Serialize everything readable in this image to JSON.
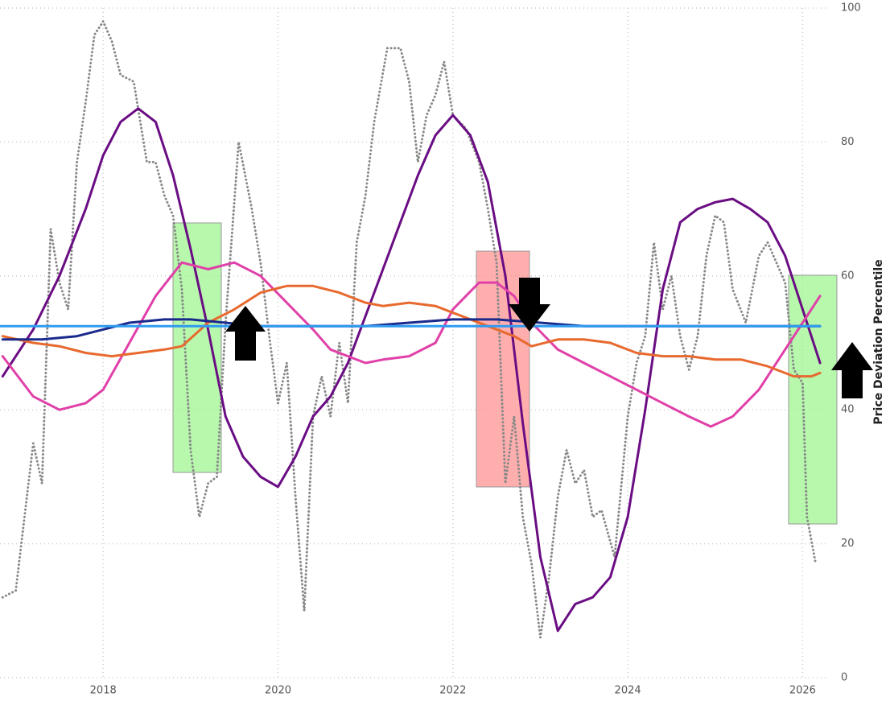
{
  "chart_data": {
    "type": "line",
    "y_label": "Price Deviation Percentile",
    "xlim": [
      2016.82,
      2026.3
    ],
    "xticks": [
      2018,
      2020,
      2022,
      2024,
      2026
    ],
    "ylim": [
      0,
      100
    ],
    "yticks": [
      0,
      20,
      40,
      60,
      80,
      100
    ],
    "grid": true,
    "series": [
      {
        "color": "#888888",
        "style": "dotted",
        "x": [
          2016.85,
          2017.0,
          2017.2,
          2017.3,
          2017.4,
          2017.5,
          2017.6,
          2017.7,
          2017.8,
          2017.9,
          2018.0,
          2018.1,
          2018.2,
          2018.35,
          2018.5,
          2018.6,
          2018.7,
          2018.8,
          2018.9,
          2019.0,
          2019.1,
          2019.2,
          2019.3,
          2019.4,
          2019.55,
          2019.7,
          2019.8,
          2019.9,
          2020.0,
          2020.1,
          2020.2,
          2020.3,
          2020.4,
          2020.5,
          2020.6,
          2020.7,
          2020.8,
          2020.9,
          2021.0,
          2021.1,
          2021.25,
          2021.4,
          2021.5,
          2021.6,
          2021.7,
          2021.8,
          2021.9,
          2022.0,
          2022.15,
          2022.3,
          2022.4,
          2022.5,
          2022.6,
          2022.7,
          2022.8,
          2022.9,
          2023.0,
          2023.1,
          2023.2,
          2023.3,
          2023.4,
          2023.5,
          2023.6,
          2023.7,
          2023.85,
          2024.0,
          2024.1,
          2024.2,
          2024.3,
          2024.4,
          2024.5,
          2024.6,
          2024.7,
          2024.8,
          2024.9,
          2025.0,
          2025.1,
          2025.2,
          2025.35,
          2025.5,
          2025.6,
          2025.7,
          2025.8,
          2025.9,
          2026.0,
          2026.05,
          2026.15
        ],
        "values": [
          12,
          13,
          35,
          29,
          67,
          59,
          55,
          77,
          86,
          96,
          98,
          95,
          90,
          89,
          77,
          77,
          72,
          69,
          58,
          34,
          24,
          29,
          30,
          53,
          80,
          70,
          62,
          51,
          41,
          47,
          27,
          10,
          39,
          45,
          39,
          50,
          41,
          65,
          72,
          83,
          94,
          94,
          89,
          77,
          84,
          87,
          92,
          84,
          82,
          77,
          70,
          62,
          29,
          39,
          24,
          17,
          6,
          15,
          27,
          34,
          29,
          31,
          24,
          25,
          18,
          39,
          47,
          51,
          65,
          55,
          60,
          51,
          46,
          51,
          63,
          69,
          68,
          58,
          53,
          63,
          65,
          62,
          59,
          46,
          44,
          24,
          17
        ]
      },
      {
        "color": "#6a0d83",
        "style": "solid",
        "x": [
          2016.85,
          2017.2,
          2017.5,
          2017.8,
          2018.0,
          2018.2,
          2018.4,
          2018.6,
          2018.8,
          2019.0,
          2019.2,
          2019.4,
          2019.6,
          2019.8,
          2020.0,
          2020.2,
          2020.4,
          2020.6,
          2020.8,
          2021.0,
          2021.2,
          2021.4,
          2021.6,
          2021.8,
          2022.0,
          2022.2,
          2022.4,
          2022.6,
          2022.8,
          2023.0,
          2023.2,
          2023.4,
          2023.6,
          2023.8,
          2024.0,
          2024.2,
          2024.4,
          2024.6,
          2024.8,
          2025.0,
          2025.2,
          2025.4,
          2025.6,
          2025.8,
          2026.0,
          2026.2
        ],
        "values": [
          45,
          52,
          60,
          70,
          78,
          83,
          85,
          83,
          75,
          64,
          52,
          39,
          33,
          30,
          28.5,
          33,
          39,
          42,
          47,
          54,
          61,
          68,
          75,
          81,
          84,
          81,
          74,
          60,
          38,
          18,
          7,
          11,
          12,
          15,
          24,
          40,
          58,
          68,
          70,
          71,
          71.5,
          70,
          68,
          63,
          55,
          47
        ]
      },
      {
        "color": "#e040a8",
        "style": "solid",
        "x": [
          2016.85,
          2017.2,
          2017.5,
          2017.8,
          2018.0,
          2018.3,
          2018.6,
          2018.9,
          2019.2,
          2019.5,
          2019.8,
          2020.1,
          2020.4,
          2020.6,
          2020.8,
          2021.0,
          2021.2,
          2021.5,
          2021.8,
          2022.0,
          2022.3,
          2022.5,
          2022.7,
          2022.9,
          2023.2,
          2023.5,
          2023.8,
          2024.1,
          2024.4,
          2024.7,
          2024.95,
          2025.2,
          2025.5,
          2025.8,
          2026.0,
          2026.2
        ],
        "values": [
          48,
          42,
          40,
          41,
          43,
          50,
          57,
          62,
          61,
          62,
          60,
          56,
          52,
          49,
          48,
          47,
          47.5,
          48,
          50,
          55,
          59,
          59,
          57,
          53,
          49,
          47,
          45,
          43,
          41,
          39,
          37.5,
          39,
          43,
          49,
          53,
          57
        ]
      },
      {
        "color": "#e8692e",
        "style": "solid",
        "x": [
          2016.85,
          2017.2,
          2017.5,
          2017.8,
          2018.1,
          2018.4,
          2018.7,
          2018.9,
          2019.2,
          2019.5,
          2019.8,
          2020.1,
          2020.4,
          2020.7,
          2021.0,
          2021.2,
          2021.5,
          2021.8,
          2022.1,
          2022.4,
          2022.7,
          2022.9,
          2023.2,
          2023.5,
          2023.8,
          2024.1,
          2024.4,
          2024.7,
          2025.0,
          2025.3,
          2025.6,
          2025.9,
          2026.1,
          2026.2
        ],
        "values": [
          51,
          50,
          49.5,
          48.5,
          48,
          48.5,
          49,
          49.5,
          53,
          55,
          57.5,
          58.5,
          58.5,
          57.5,
          56,
          55.5,
          56,
          55.5,
          54,
          52.5,
          51,
          49.5,
          50.5,
          50.5,
          50,
          48.5,
          48,
          48,
          47.5,
          47.5,
          46.5,
          45,
          45,
          45.5
        ]
      },
      {
        "color": "#1a2a8c",
        "style": "solid",
        "x": [
          2016.85,
          2017.3,
          2017.7,
          2018.0,
          2018.3,
          2018.7,
          2019.0,
          2019.4,
          2019.8,
          2020.5,
          2021.0,
          2021.5,
          2022.0,
          2022.5,
          2023.0,
          2023.5,
          2024.0,
          2025.0,
          2026.2
        ],
        "values": [
          50.5,
          50.5,
          51,
          52,
          53,
          53.5,
          53.5,
          53,
          52.5,
          52.5,
          52.5,
          53,
          53.5,
          53.5,
          53,
          52.5,
          52.5,
          52.5,
          52.5
        ]
      },
      {
        "color": "#2f9bf0",
        "style": "solid",
        "x": [
          2016.82,
          2026.2
        ],
        "values": [
          52.5,
          52.5
        ]
      }
    ]
  }
}
